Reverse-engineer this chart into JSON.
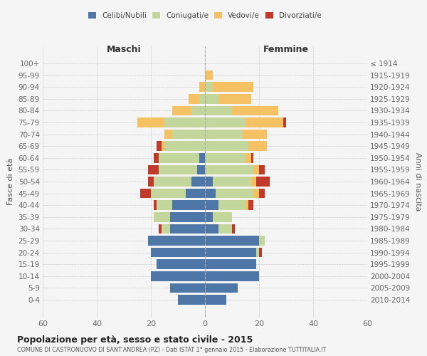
{
  "age_groups": [
    "0-4",
    "5-9",
    "10-14",
    "15-19",
    "20-24",
    "25-29",
    "30-34",
    "35-39",
    "40-44",
    "45-49",
    "50-54",
    "55-59",
    "60-64",
    "65-69",
    "70-74",
    "75-79",
    "80-84",
    "85-89",
    "90-94",
    "95-99",
    "100+"
  ],
  "birth_years": [
    "2010-2014",
    "2005-2009",
    "2000-2004",
    "1995-1999",
    "1990-1994",
    "1985-1989",
    "1980-1984",
    "1975-1979",
    "1970-1974",
    "1965-1969",
    "1960-1964",
    "1955-1959",
    "1950-1954",
    "1945-1949",
    "1940-1944",
    "1935-1939",
    "1930-1934",
    "1925-1929",
    "1920-1924",
    "1915-1919",
    "≤ 1914"
  ],
  "males": {
    "celibe": [
      10,
      13,
      20,
      18,
      20,
      21,
      13,
      13,
      12,
      7,
      5,
      3,
      2,
      0,
      0,
      0,
      0,
      0,
      0,
      0,
      0
    ],
    "coniugato": [
      0,
      0,
      0,
      0,
      0,
      0,
      3,
      6,
      6,
      13,
      14,
      14,
      15,
      15,
      12,
      15,
      5,
      2,
      0,
      0,
      0
    ],
    "vedovo": [
      0,
      0,
      0,
      0,
      0,
      0,
      0,
      0,
      0,
      0,
      0,
      0,
      0,
      1,
      3,
      10,
      7,
      4,
      2,
      0,
      0
    ],
    "divorziato": [
      0,
      0,
      0,
      0,
      0,
      0,
      1,
      0,
      1,
      4,
      2,
      4,
      2,
      2,
      0,
      0,
      0,
      0,
      0,
      0,
      0
    ]
  },
  "females": {
    "nubile": [
      8,
      12,
      20,
      19,
      19,
      20,
      5,
      3,
      5,
      4,
      3,
      0,
      0,
      0,
      0,
      0,
      0,
      0,
      0,
      0,
      0
    ],
    "coniugata": [
      0,
      0,
      0,
      0,
      1,
      2,
      5,
      7,
      10,
      14,
      14,
      18,
      15,
      16,
      14,
      15,
      10,
      5,
      3,
      0,
      0
    ],
    "vedova": [
      0,
      0,
      0,
      0,
      0,
      0,
      0,
      0,
      1,
      2,
      2,
      2,
      2,
      7,
      9,
      14,
      17,
      12,
      15,
      3,
      0
    ],
    "divorziata": [
      0,
      0,
      0,
      0,
      1,
      0,
      1,
      0,
      2,
      2,
      5,
      2,
      1,
      0,
      0,
      1,
      0,
      0,
      0,
      0,
      0
    ]
  },
  "colors": {
    "celibe": "#4e77a8",
    "coniugato": "#c3d69b",
    "vedovo": "#f5c163",
    "divorziato": "#c0392b"
  },
  "xlim": 60,
  "title": "Popolazione per età, sesso e stato civile - 2015",
  "subtitle": "COMUNE DI CASTRONUOVO DI SANT'ANDREA (PZ) - Dati ISTAT 1° gennaio 2015 - Elaborazione TUTTITALIA.IT",
  "ylabel_left": "Fasce di età",
  "ylabel_right": "Anni di nascita",
  "xlabel_left": "Maschi",
  "xlabel_right": "Femmine",
  "background_color": "#f5f5f5",
  "grid_color": "#cccccc"
}
